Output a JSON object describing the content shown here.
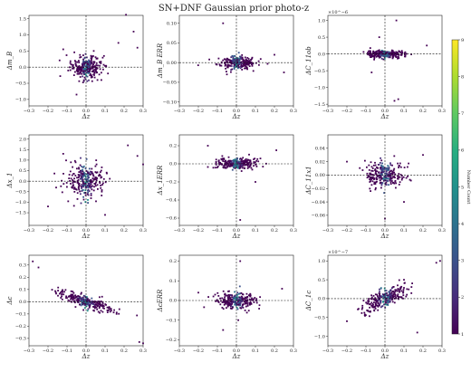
{
  "figure_title": "SN+DNF Gaussian prior photo-z",
  "colorbar": {
    "label": "Number Count",
    "min": 1,
    "max": 9,
    "ticks": [
      "1",
      "2",
      "3",
      "4",
      "5",
      "6",
      "7",
      "8",
      "9"
    ],
    "colors": [
      "#440154",
      "#472d7b",
      "#3b528b",
      "#2c728e",
      "#21918c",
      "#28ae80",
      "#5ec962",
      "#addc30",
      "#fde725"
    ]
  },
  "chart_data": [
    {
      "type": "scatter",
      "ylabel": "Δm_B",
      "xlabel": "Δz",
      "xlim": [
        -0.3,
        0.3
      ],
      "ylim": [
        -1.2,
        1.6
      ],
      "xticks": [
        "−0.3",
        "−0.2",
        "−0.1",
        "0.0",
        "0.1",
        "0.2",
        "0.3"
      ],
      "yticks": [
        "−1.0",
        "−0.5",
        "0.0",
        "0.5",
        "1.0",
        "1.5"
      ],
      "ytick_values": [
        -1.0,
        -0.5,
        0.0,
        0.5,
        1.0,
        1.5
      ],
      "exponent": "",
      "spread": [
        0.04,
        0.18
      ],
      "slope": 0.0,
      "outliers": [
        [
          0.21,
          1.62
        ],
        [
          0.25,
          1.1
        ],
        [
          -0.12,
          0.55
        ],
        [
          0.17,
          0.75
        ],
        [
          -0.05,
          -0.85
        ],
        [
          0.06,
          -0.4
        ],
        [
          0.27,
          0.6
        ]
      ]
    },
    {
      "type": "scatter",
      "ylabel": "Δm_B ERR",
      "xlabel": "Δz",
      "xlim": [
        -0.3,
        0.3
      ],
      "ylim": [
        -0.11,
        0.12
      ],
      "xticks": [
        "−0.3",
        "−0.2",
        "−0.1",
        "0.0",
        "0.1",
        "0.2",
        "0.3"
      ],
      "yticks": [
        "−0.10",
        "−0.05",
        "0.00",
        "0.05",
        "0.10"
      ],
      "ytick_values": [
        -0.1,
        -0.05,
        0.0,
        0.05,
        0.1
      ],
      "exponent": "",
      "spread": [
        0.05,
        0.008
      ],
      "slope": 0.0,
      "outliers": [
        [
          -0.07,
          0.1
        ],
        [
          0.25,
          -0.025
        ],
        [
          0.2,
          0.02
        ],
        [
          -0.05,
          -0.03
        ]
      ]
    },
    {
      "type": "scatter",
      "ylabel": "ΔC_11ob",
      "xlabel": "Δz",
      "xlim": [
        -0.3,
        0.3
      ],
      "ylim": [
        -1.55,
        1.15
      ],
      "xticks": [
        "−0.3",
        "−0.2",
        "−0.1",
        "0.0",
        "0.1",
        "0.2",
        "0.3"
      ],
      "yticks": [
        "−1.5",
        "−1.0",
        "−0.5",
        "0.0",
        "0.5",
        "1.0"
      ],
      "ytick_values": [
        -1.5,
        -1.0,
        -0.5,
        0.0,
        0.5,
        1.0
      ],
      "exponent": "×10^−6",
      "spread": [
        0.05,
        0.05
      ],
      "slope": 0.0,
      "outliers": [
        [
          0.06,
          1.0
        ],
        [
          0.05,
          -1.4
        ],
        [
          0.07,
          -1.35
        ],
        [
          -0.03,
          0.5
        ],
        [
          -0.07,
          -0.55
        ],
        [
          0.22,
          0.25
        ]
      ]
    },
    {
      "type": "scatter",
      "ylabel": "Δx_1",
      "xlabel": "Δz",
      "xlim": [
        -0.3,
        0.3
      ],
      "ylim": [
        -2.1,
        2.2
      ],
      "xticks": [
        "−0.3",
        "−0.2",
        "−0.1",
        "0.0",
        "0.1",
        "0.2",
        "0.3"
      ],
      "yticks": [
        "−1.5",
        "−1.0",
        "−0.5",
        "0.0",
        "0.5",
        "1.0",
        "1.5",
        "2.0"
      ],
      "ytick_values": [
        -1.5,
        -1.0,
        -0.5,
        0.0,
        0.5,
        1.0,
        1.5,
        2.0
      ],
      "exponent": "",
      "spread": [
        0.05,
        0.4
      ],
      "slope": 0.0,
      "outliers": [
        [
          0.22,
          1.7
        ],
        [
          0.27,
          1.2
        ],
        [
          -0.2,
          -1.2
        ],
        [
          0.1,
          -1.6
        ],
        [
          -0.12,
          1.3
        ],
        [
          0.3,
          0.8
        ]
      ]
    },
    {
      "type": "scatter",
      "ylabel": "Δx_1ERR",
      "xlabel": "Δz",
      "xlim": [
        -0.3,
        0.3
      ],
      "ylim": [
        -0.68,
        0.32
      ],
      "xticks": [
        "−0.3",
        "−0.2",
        "−0.1",
        "0.0",
        "0.1",
        "0.2",
        "0.3"
      ],
      "yticks": [
        "−0.6",
        "−0.4",
        "−0.2",
        "0.0",
        "0.2"
      ],
      "ytick_values": [
        -0.6,
        -0.4,
        -0.2,
        0.0,
        0.2
      ],
      "exponent": "",
      "spread": [
        0.05,
        0.03
      ],
      "slope": 0.0,
      "outliers": [
        [
          0.02,
          -0.62
        ],
        [
          -0.15,
          0.2
        ],
        [
          0.21,
          0.15
        ],
        [
          0.1,
          -0.2
        ]
      ]
    },
    {
      "type": "scatter",
      "ylabel": "ΔC_11x1",
      "xlabel": "Δz",
      "xlim": [
        -0.3,
        0.3
      ],
      "ylim": [
        -0.075,
        0.06
      ],
      "xticks": [
        "−0.3",
        "−0.2",
        "−0.1",
        "0.0",
        "0.1",
        "0.2",
        "0.3"
      ],
      "yticks": [
        "−0.06",
        "−0.04",
        "−0.02",
        "0.00",
        "0.02",
        "0.04"
      ],
      "ytick_values": [
        -0.06,
        -0.04,
        -0.02,
        0.0,
        0.02,
        0.04
      ],
      "exponent": "",
      "spread": [
        0.05,
        0.01
      ],
      "slope": 0.0,
      "outliers": [
        [
          0.0,
          -0.065
        ],
        [
          0.2,
          0.03
        ],
        [
          -0.2,
          0.02
        ],
        [
          0.1,
          -0.04
        ]
      ]
    },
    {
      "type": "scatter",
      "ylabel": "Δc",
      "xlabel": "Δz",
      "xlim": [
        -0.3,
        0.3
      ],
      "ylim": [
        -0.36,
        0.38
      ],
      "xticks": [
        "−0.3",
        "−0.2",
        "−0.1",
        "0.0",
        "0.1",
        "0.2",
        "0.3"
      ],
      "yticks": [
        "−0.3",
        "−0.2",
        "−0.1",
        "0.0",
        "0.1",
        "0.2",
        "0.3"
      ],
      "ytick_values": [
        -0.3,
        -0.2,
        -0.1,
        0.0,
        0.1,
        0.2,
        0.3
      ],
      "exponent": "",
      "spread": [
        0.07,
        0.025
      ],
      "slope": -1.0,
      "outliers": [
        [
          -0.28,
          0.33
        ],
        [
          -0.25,
          0.28
        ],
        [
          0.28,
          -0.33
        ],
        [
          0.3,
          -0.34
        ]
      ]
    },
    {
      "type": "scatter",
      "ylabel": "ΔcERR",
      "xlabel": "Δz",
      "xlim": [
        -0.3,
        0.3
      ],
      "ylim": [
        -0.23,
        0.23
      ],
      "xticks": [
        "−0.3",
        "−0.2",
        "−0.1",
        "0.0",
        "0.1",
        "0.2",
        "0.3"
      ],
      "yticks": [
        "−0.2",
        "−0.1",
        "0.0",
        "0.1",
        "0.2"
      ],
      "ytick_values": [
        -0.2,
        -0.1,
        0.0,
        0.1,
        0.2
      ],
      "exponent": "",
      "spread": [
        0.05,
        0.02
      ],
      "slope": 0.0,
      "outliers": [
        [
          0.02,
          0.2
        ],
        [
          -0.07,
          -0.15
        ],
        [
          -0.2,
          0.04
        ],
        [
          0.24,
          0.06
        ],
        [
          0.01,
          -0.1
        ]
      ]
    },
    {
      "type": "scatter",
      "ylabel": "ΔC_1c",
      "xlabel": "Δz",
      "xlim": [
        -0.3,
        0.3
      ],
      "ylim": [
        -1.25,
        1.15
      ],
      "xticks": [
        "−0.3",
        "−0.2",
        "−0.1",
        "0.0",
        "0.1",
        "0.2",
        "0.3"
      ],
      "yticks": [
        "−1.0",
        "−0.5",
        "0.0",
        "0.5",
        "1.0"
      ],
      "ytick_values": [
        -1.0,
        -0.5,
        0.0,
        0.5,
        1.0
      ],
      "exponent": "×10^−7",
      "spread": [
        0.06,
        0.12
      ],
      "slope": 1.4,
      "outliers": [
        [
          0.27,
          0.95
        ],
        [
          0.29,
          1.0
        ],
        [
          -0.2,
          -0.6
        ],
        [
          0.17,
          -0.9
        ],
        [
          0.1,
          0.5
        ]
      ]
    }
  ]
}
